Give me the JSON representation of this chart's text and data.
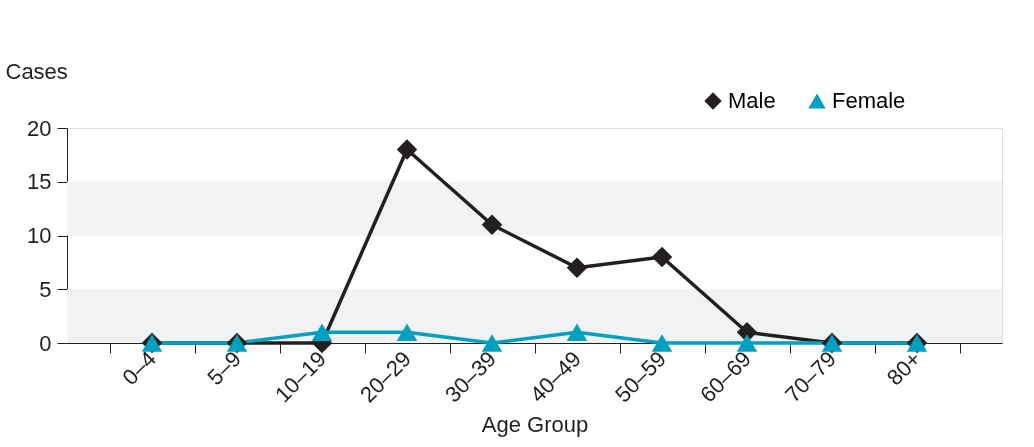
{
  "chart_data": {
    "type": "line",
    "xlabel": "Age  Group",
    "ylabel": "Cases",
    "categories": [
      "0–4",
      "5–9",
      "10–19",
      "20–29",
      "30–39",
      "40–49",
      "50–59",
      "60–69",
      "70–79",
      "80+"
    ],
    "series": [
      {
        "name": "Male",
        "color": "#231f20",
        "marker": "diamond",
        "values": [
          0,
          0,
          0,
          18,
          11,
          7,
          8,
          1,
          0,
          0
        ]
      },
      {
        "name": "Female",
        "color": "#00a0c0",
        "marker": "triangle",
        "values": [
          0,
          0,
          1,
          1,
          0,
          1,
          0,
          0,
          0,
          0
        ]
      }
    ],
    "ylim": [
      0,
      20
    ],
    "yticks": [
      0,
      5,
      10,
      15,
      20
    ],
    "bands": [
      {
        "axis": "y",
        "from": 0,
        "to": 5,
        "color": "#f1f2f4"
      },
      {
        "axis": "y",
        "from": 10,
        "to": 15,
        "color": "#f1f2f4"
      }
    ],
    "grid": false,
    "legend": "top right",
    "line_style": "solid"
  }
}
